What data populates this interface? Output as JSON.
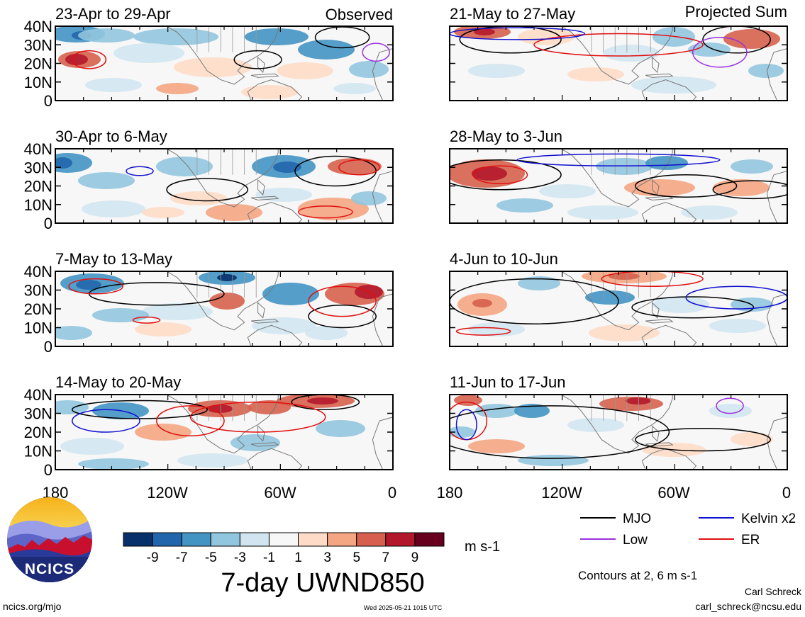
{
  "observed_label": "Observed",
  "projected_label": "Projected Sum",
  "latitude_labels": [
    "40N",
    "30N",
    "20N",
    "10N",
    "0"
  ],
  "longitude_labels": [
    "180",
    "120W",
    "60W",
    "0"
  ],
  "panels": [
    {
      "title": "23-Apr to 29-Apr"
    },
    {
      "title": "30-Apr to 6-May"
    },
    {
      "title": "7-May to 13-May"
    },
    {
      "title": "14-May to 20-May"
    },
    {
      "title": "21-May to 27-May"
    },
    {
      "title": "28-May to 3-Jun"
    },
    {
      "title": "4-Jun to 10-Jun"
    },
    {
      "title": "11-Jun to 17-Jun"
    }
  ],
  "colorbar": {
    "colors": [
      "#08306b",
      "#2166ac",
      "#4393c3",
      "#92c5de",
      "#d1e5f0",
      "#f7f7f7",
      "#fddbc7",
      "#f4a582",
      "#d6604d",
      "#b2182b",
      "#67001f"
    ],
    "tick_labels": [
      "-9",
      "-7",
      "-5",
      "-3",
      "-1",
      "1",
      "3",
      "5",
      "7",
      "9"
    ],
    "units": "m s-1"
  },
  "main_title": "7-day UWND850",
  "legend": [
    {
      "label": "MJO",
      "color": "#000000"
    },
    {
      "label": "Kelvin x2",
      "color": "#1010d0"
    },
    {
      "label": "Low",
      "color": "#9a30e0"
    },
    {
      "label": "ER",
      "color": "#e01010"
    }
  ],
  "contour_note": "Contours at 2, 6 m s-1",
  "logo_text": "NCICS",
  "author": "Carl Schreck",
  "email": "carl_schreck@ncsu.edu",
  "website": "ncics.org/mjo",
  "timestamp": "Wed 2025-05-21 1015 UTC"
}
